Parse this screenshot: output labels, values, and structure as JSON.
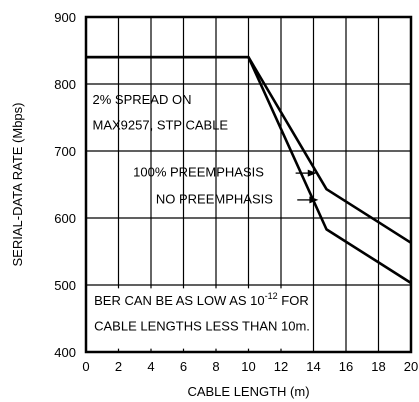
{
  "chart_data": {
    "type": "line",
    "title": "",
    "xlabel": "CABLE LENGTH (m)",
    "ylabel": "SERIAL-DATA RATE (Mbps)",
    "xlim": [
      0,
      20
    ],
    "ylim": [
      400,
      900
    ],
    "xticks": [
      0,
      2,
      4,
      6,
      8,
      10,
      12,
      14,
      16,
      18,
      20
    ],
    "yticks": [
      400,
      500,
      600,
      700,
      800,
      900
    ],
    "grid": true,
    "series": [
      {
        "name": "100% PREEMPHASIS",
        "x": [
          0,
          10,
          14.8,
          20
        ],
        "y": [
          840,
          840,
          643,
          563
        ]
      },
      {
        "name": "NO PREEMPHASIS",
        "x": [
          0,
          10,
          14.8,
          20
        ],
        "y": [
          840,
          840,
          583,
          503
        ]
      }
    ],
    "annotations": {
      "spread_line1": "2% SPREAD ON",
      "spread_line2": "MAX9257, STP CABLE",
      "ber_line1_prefix": "BER CAN BE AS LOW AS 10",
      "ber_line1_exp": "-12",
      "ber_line1_suffix": " FOR",
      "ber_line2": "CABLE LENGTHS LESS THAN 10m."
    }
  }
}
